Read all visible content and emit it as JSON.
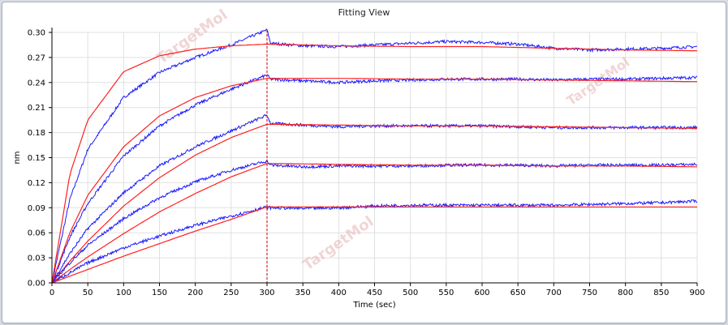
{
  "window": {
    "title": "Fitting View"
  },
  "watermark": "TargetMol",
  "colors": {
    "measured": "#1a1aff",
    "fit": "#ff2020",
    "divider": "#cc0000",
    "grid": "#e0e0e0"
  },
  "chart_data": {
    "type": "line",
    "title": "Fitting View",
    "xlabel": "Time (sec)",
    "ylabel": "nm",
    "xlim": [
      0,
      900
    ],
    "ylim": [
      0,
      0.3
    ],
    "xticks": [
      "0",
      "50",
      "100",
      "150",
      "200",
      "250",
      "300",
      "350",
      "400",
      "450",
      "500",
      "550",
      "600",
      "650",
      "700",
      "750",
      "800",
      "850",
      "900"
    ],
    "yticks": [
      "0.00",
      "0.03",
      "0.06",
      "0.09",
      "0.12",
      "0.15",
      "0.18",
      "0.21",
      "0.24",
      "0.27",
      "0.30"
    ],
    "grid": true,
    "legend": "none",
    "association_end": 300,
    "series": [
      {
        "kind": "measured",
        "values": [
          [
            0,
            0
          ],
          [
            25,
            0.1
          ],
          [
            50,
            0.16
          ],
          [
            100,
            0.222
          ],
          [
            150,
            0.252
          ],
          [
            200,
            0.27
          ],
          [
            250,
            0.285
          ],
          [
            300,
            0.303
          ],
          [
            305,
            0.287
          ],
          [
            350,
            0.284
          ],
          [
            400,
            0.283
          ],
          [
            450,
            0.285
          ],
          [
            500,
            0.287
          ],
          [
            550,
            0.289
          ],
          [
            600,
            0.288
          ],
          [
            650,
            0.286
          ],
          [
            700,
            0.281
          ],
          [
            750,
            0.279
          ],
          [
            800,
            0.28
          ],
          [
            850,
            0.281
          ],
          [
            900,
            0.283
          ]
        ]
      },
      {
        "kind": "fit",
        "values": [
          [
            0,
            0
          ],
          [
            25,
            0.13
          ],
          [
            50,
            0.195
          ],
          [
            100,
            0.253
          ],
          [
            150,
            0.272
          ],
          [
            200,
            0.28
          ],
          [
            250,
            0.284
          ],
          [
            300,
            0.286
          ],
          [
            400,
            0.284
          ],
          [
            500,
            0.283
          ],
          [
            600,
            0.283
          ],
          [
            700,
            0.281
          ],
          [
            800,
            0.279
          ],
          [
            900,
            0.278
          ]
        ]
      },
      {
        "kind": "measured",
        "values": [
          [
            0,
            0
          ],
          [
            25,
            0.055
          ],
          [
            50,
            0.095
          ],
          [
            100,
            0.152
          ],
          [
            150,
            0.188
          ],
          [
            200,
            0.213
          ],
          [
            250,
            0.232
          ],
          [
            300,
            0.249
          ],
          [
            305,
            0.244
          ],
          [
            350,
            0.242
          ],
          [
            400,
            0.24
          ],
          [
            450,
            0.242
          ],
          [
            500,
            0.243
          ],
          [
            550,
            0.244
          ],
          [
            600,
            0.244
          ],
          [
            650,
            0.244
          ],
          [
            700,
            0.243
          ],
          [
            750,
            0.244
          ],
          [
            800,
            0.244
          ],
          [
            850,
            0.245
          ],
          [
            900,
            0.246
          ]
        ]
      },
      {
        "kind": "fit",
        "values": [
          [
            0,
            0
          ],
          [
            25,
            0.06
          ],
          [
            50,
            0.105
          ],
          [
            100,
            0.163
          ],
          [
            150,
            0.2
          ],
          [
            200,
            0.222
          ],
          [
            250,
            0.236
          ],
          [
            300,
            0.245
          ],
          [
            400,
            0.245
          ],
          [
            500,
            0.244
          ],
          [
            600,
            0.244
          ],
          [
            700,
            0.243
          ],
          [
            800,
            0.242
          ],
          [
            900,
            0.241
          ]
        ]
      },
      {
        "kind": "measured",
        "values": [
          [
            0,
            0
          ],
          [
            25,
            0.035
          ],
          [
            50,
            0.065
          ],
          [
            100,
            0.108
          ],
          [
            150,
            0.14
          ],
          [
            200,
            0.163
          ],
          [
            250,
            0.182
          ],
          [
            300,
            0.201
          ],
          [
            305,
            0.191
          ],
          [
            350,
            0.189
          ],
          [
            400,
            0.187
          ],
          [
            450,
            0.188
          ],
          [
            500,
            0.188
          ],
          [
            550,
            0.188
          ],
          [
            600,
            0.188
          ],
          [
            650,
            0.187
          ],
          [
            700,
            0.186
          ],
          [
            750,
            0.186
          ],
          [
            800,
            0.186
          ],
          [
            850,
            0.186
          ],
          [
            900,
            0.186
          ]
        ]
      },
      {
        "kind": "fit",
        "values": [
          [
            0,
            0
          ],
          [
            25,
            0.026
          ],
          [
            50,
            0.05
          ],
          [
            100,
            0.092
          ],
          [
            150,
            0.126
          ],
          [
            200,
            0.153
          ],
          [
            250,
            0.174
          ],
          [
            300,
            0.19
          ],
          [
            400,
            0.189
          ],
          [
            500,
            0.188
          ],
          [
            600,
            0.188
          ],
          [
            700,
            0.187
          ],
          [
            800,
            0.186
          ],
          [
            900,
            0.185
          ]
        ]
      },
      {
        "kind": "measured",
        "values": [
          [
            0,
            0
          ],
          [
            25,
            0.024
          ],
          [
            50,
            0.045
          ],
          [
            100,
            0.077
          ],
          [
            150,
            0.102
          ],
          [
            200,
            0.121
          ],
          [
            250,
            0.135
          ],
          [
            300,
            0.146
          ],
          [
            305,
            0.141
          ],
          [
            350,
            0.139
          ],
          [
            400,
            0.14
          ],
          [
            450,
            0.14
          ],
          [
            500,
            0.14
          ],
          [
            550,
            0.141
          ],
          [
            600,
            0.141
          ],
          [
            650,
            0.141
          ],
          [
            700,
            0.14
          ],
          [
            750,
            0.141
          ],
          [
            800,
            0.141
          ],
          [
            850,
            0.141
          ],
          [
            900,
            0.142
          ]
        ]
      },
      {
        "kind": "fit",
        "values": [
          [
            0,
            0
          ],
          [
            25,
            0.016
          ],
          [
            50,
            0.031
          ],
          [
            100,
            0.059
          ],
          [
            150,
            0.085
          ],
          [
            200,
            0.107
          ],
          [
            250,
            0.127
          ],
          [
            300,
            0.143
          ],
          [
            400,
            0.142
          ],
          [
            500,
            0.141
          ],
          [
            600,
            0.141
          ],
          [
            700,
            0.14
          ],
          [
            800,
            0.14
          ],
          [
            900,
            0.139
          ]
        ]
      },
      {
        "kind": "measured",
        "values": [
          [
            0,
            0
          ],
          [
            25,
            0.012
          ],
          [
            50,
            0.024
          ],
          [
            100,
            0.042
          ],
          [
            150,
            0.056
          ],
          [
            200,
            0.069
          ],
          [
            250,
            0.08
          ],
          [
            300,
            0.091
          ],
          [
            305,
            0.09
          ],
          [
            350,
            0.089
          ],
          [
            400,
            0.09
          ],
          [
            450,
            0.092
          ],
          [
            500,
            0.093
          ],
          [
            550,
            0.093
          ],
          [
            600,
            0.093
          ],
          [
            650,
            0.093
          ],
          [
            700,
            0.093
          ],
          [
            750,
            0.094
          ],
          [
            800,
            0.095
          ],
          [
            850,
            0.096
          ],
          [
            900,
            0.098
          ]
        ]
      },
      {
        "kind": "fit",
        "values": [
          [
            0,
            0
          ],
          [
            25,
            0.008
          ],
          [
            50,
            0.016
          ],
          [
            100,
            0.032
          ],
          [
            150,
            0.047
          ],
          [
            200,
            0.062
          ],
          [
            250,
            0.076
          ],
          [
            300,
            0.091
          ],
          [
            400,
            0.091
          ],
          [
            500,
            0.091
          ],
          [
            600,
            0.091
          ],
          [
            700,
            0.091
          ],
          [
            800,
            0.091
          ],
          [
            900,
            0.091
          ]
        ]
      }
    ]
  }
}
